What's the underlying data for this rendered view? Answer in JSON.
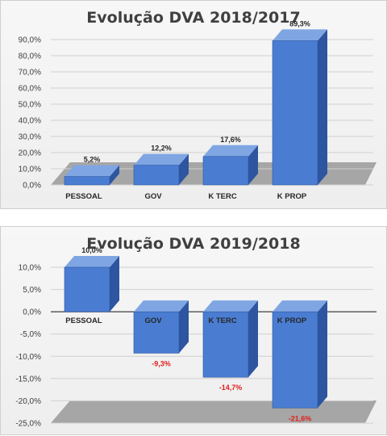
{
  "colors": {
    "bar_front": "#4a7dd2",
    "bar_side": "#2d55a0",
    "bar_top": "#7fa6e3",
    "floor": "#a6a6a6",
    "negative_label": "#e01e1e"
  },
  "chart_data": [
    {
      "type": "bar",
      "title": "Evolução DVA 2018/2017",
      "categories": [
        "PESSOAL",
        "GOV",
        "K TERC",
        "K PROP"
      ],
      "values": [
        5.2,
        12.2,
        17.6,
        89.3
      ],
      "value_labels": [
        "5,2%",
        "12,2%",
        "17,6%",
        "89,3%"
      ],
      "ylim": [
        0,
        90
      ],
      "yticks": [
        0,
        10,
        20,
        30,
        40,
        50,
        60,
        70,
        80,
        90
      ],
      "ytick_labels": [
        "0,0%",
        "10,0%",
        "20,0%",
        "30,0%",
        "40,0%",
        "50,0%",
        "60,0%",
        "70,0%",
        "80,0%",
        "90,0%"
      ],
      "grid": true,
      "style": "3d-column"
    },
    {
      "type": "bar",
      "title": "Evolução DVA 2019/2018",
      "categories": [
        "PESSOAL",
        "GOV",
        "K TERC",
        "K PROP"
      ],
      "values": [
        10.0,
        -9.3,
        -14.7,
        -21.6
      ],
      "value_labels": [
        "10,0%",
        "-9,3%",
        "-14,7%",
        "-21,6%"
      ],
      "ylim": [
        -25,
        10
      ],
      "yticks": [
        10,
        5,
        0,
        -5,
        -10,
        -15,
        -20,
        -25
      ],
      "ytick_labels": [
        "10,0%",
        "5,0%",
        "0,0%",
        "-5,0%",
        "-10,0%",
        "-15,0%",
        "-20,0%",
        "-25,0%"
      ],
      "grid": true,
      "style": "3d-column"
    }
  ]
}
